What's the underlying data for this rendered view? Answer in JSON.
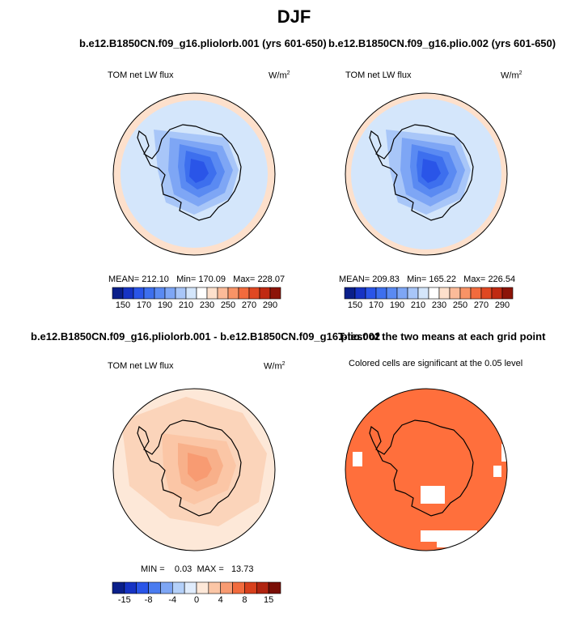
{
  "figure_title": "DJF",
  "panels": {
    "top_left": {
      "title": "b.e12.B1850CN.f09_g16.pliolorb.001 (yrs 601-650)",
      "variable": "TOM net LW flux",
      "units_base": "W/m",
      "units_exp": "2",
      "mean_label": "MEAN=",
      "mean": "212.10",
      "min_label": "Min=",
      "min": "170.09",
      "max_label": "Max=",
      "max": "228.07"
    },
    "top_right": {
      "title": "b.e12.B1850CN.f09_g16.plio.002 (yrs 601-650)",
      "variable": "TOM net LW flux",
      "units_base": "W/m",
      "units_exp": "2",
      "mean_label": "MEAN=",
      "mean": "209.83",
      "min_label": "Min=",
      "min": "165.22",
      "max_label": "Max=",
      "max": "226.54"
    },
    "bottom_left": {
      "title": "b.e12.B1850CN.f09_g16.pliolorb.001 - b.e12.B1850CN.f09_g16.plio.002",
      "variable": "TOM net LW flux",
      "units_base": "W/m",
      "units_exp": "2",
      "min_label": "MIN =",
      "min": "0.03",
      "max_label": "MAX =",
      "max": "13.73"
    },
    "bottom_right": {
      "title": "T-test of the two means at each grid point",
      "subtitle": "Colored cells are significant at the 0.05 level"
    }
  },
  "chart_data": [
    {
      "type": "heatmap",
      "title": "b.e12.B1850CN.f09_g16.pliolorb.001 (yrs 601-650)",
      "variable": "TOM net LW flux",
      "units": "W/m2",
      "projection": "south-polar-stereographic",
      "stats": {
        "mean": 212.1,
        "min": 170.09,
        "max": 228.07
      },
      "colorbar": {
        "levels": [
          150,
          160,
          170,
          180,
          190,
          200,
          210,
          220,
          230,
          240,
          250,
          260,
          270,
          280,
          290
        ],
        "tick_labels": [
          "150",
          "170",
          "190",
          "210",
          "230",
          "250",
          "270",
          "290"
        ],
        "colors": [
          "#0a1f8a",
          "#1633c4",
          "#2a55e8",
          "#3d6fee",
          "#5a8af2",
          "#7ea6f5",
          "#a8c6f8",
          "#d4e6fb",
          "#ffffff",
          "#fde0cc",
          "#fbbb99",
          "#f89366",
          "#f26b3d",
          "#e04822",
          "#c02a12",
          "#8c1408"
        ]
      }
    },
    {
      "type": "heatmap",
      "title": "b.e12.B1850CN.f09_g16.plio.002 (yrs 601-650)",
      "variable": "TOM net LW flux",
      "units": "W/m2",
      "projection": "south-polar-stereographic",
      "stats": {
        "mean": 209.83,
        "min": 165.22,
        "max": 226.54
      },
      "colorbar": {
        "levels": [
          150,
          160,
          170,
          180,
          190,
          200,
          210,
          220,
          230,
          240,
          250,
          260,
          270,
          280,
          290
        ],
        "tick_labels": [
          "150",
          "170",
          "190",
          "210",
          "230",
          "250",
          "270",
          "290"
        ],
        "colors": [
          "#0a1f8a",
          "#1633c4",
          "#2a55e8",
          "#3d6fee",
          "#5a8af2",
          "#7ea6f5",
          "#a8c6f8",
          "#d4e6fb",
          "#ffffff",
          "#fde0cc",
          "#fbbb99",
          "#f89366",
          "#f26b3d",
          "#e04822",
          "#c02a12",
          "#8c1408"
        ]
      }
    },
    {
      "type": "heatmap",
      "title": "b.e12.B1850CN.f09_g16.pliolorb.001 - b.e12.B1850CN.f09_g16.plio.002",
      "variable": "TOM net LW flux",
      "units": "W/m2",
      "projection": "south-polar-stereographic",
      "stats": {
        "min": 0.03,
        "max": 13.73
      },
      "colorbar": {
        "levels": [
          -15,
          -10,
          -8,
          -6,
          -4,
          -2,
          0,
          2,
          4,
          6,
          8,
          10,
          15
        ],
        "tick_labels": [
          "-15",
          "-8",
          "-4",
          "0",
          "4",
          "8",
          "15"
        ],
        "colors": [
          "#0a1f8a",
          "#1633c4",
          "#2a55e8",
          "#4a7cf0",
          "#7ea6f5",
          "#b4d0f9",
          "#e0ecfc",
          "#fde8d8",
          "#fbc6a6",
          "#f89b72",
          "#f26b3d",
          "#d8401c",
          "#b02410",
          "#7a0e06"
        ]
      }
    },
    {
      "type": "heatmap",
      "title": "T-test of the two means at each grid point",
      "subtitle": "Colored cells are significant at the 0.05 level",
      "projection": "south-polar-stereographic",
      "significant_color": "#ff6f3c"
    }
  ]
}
